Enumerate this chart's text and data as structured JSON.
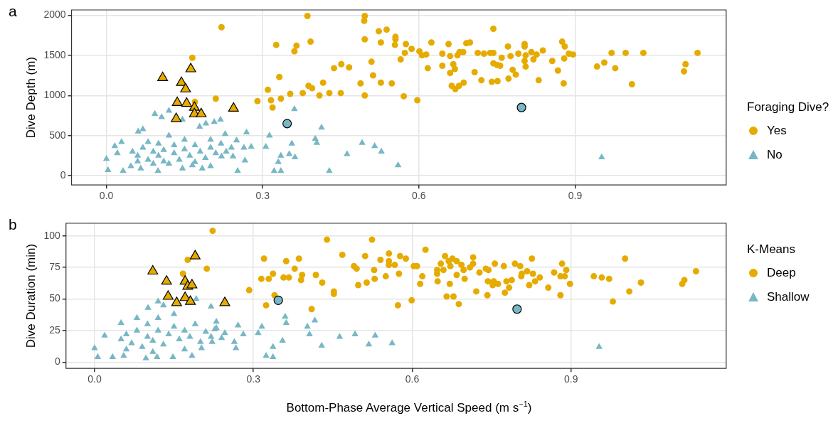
{
  "chart_data": [
    {
      "type": "scatter",
      "title": "a",
      "ylabel": "Dive Depth (m)",
      "legend_title": "Foraging Dive?",
      "legend": "right",
      "grid": true,
      "xlim": [
        -0.067,
        1.19
      ],
      "xticks": [
        {
          "value": 0,
          "label": "0.0"
        },
        {
          "value": 0.3,
          "label": "0.3"
        },
        {
          "value": 0.6,
          "label": "0.6"
        },
        {
          "value": 0.9,
          "label": "0.9"
        }
      ],
      "ylim": [
        -115,
        2065
      ],
      "yticks": [
        0,
        500,
        1000,
        1500,
        2000
      ],
      "series": [
        {
          "name": "Yes",
          "color": "#e6ab00",
          "marker": "circle",
          "x": [
            0.221,
            0.165,
            0.21,
            0.17,
            0.29,
            0.326,
            0.365,
            0.361,
            0.332,
            0.31,
            0.316,
            0.335,
            0.319,
            0.353,
            0.386,
            0.496,
            0.495,
            0.523,
            0.538,
            0.743,
            0.392,
            0.496,
            0.527,
            0.555,
            0.555,
            0.554,
            0.575,
            0.573,
            0.586,
            0.601,
            0.606,
            0.614,
            0.624,
            0.565,
            0.509,
            0.451,
            0.437,
            0.466,
            0.512,
            0.488,
            0.527,
            0.548,
            0.416,
            0.388,
            0.395,
            0.377,
            0.409,
            0.428,
            0.45,
            0.496,
            0.571,
            0.597,
            0.617,
            0.645,
            0.657,
            0.66,
            0.645,
            0.666,
            0.669,
            0.66,
            0.674,
            0.678,
            0.685,
            0.691,
            0.698,
            0.663,
            0.67,
            0.677,
            0.686,
            0.707,
            0.713,
            0.725,
            0.72,
            0.74,
            0.751,
            0.737,
            0.743,
            0.743,
            0.75,
            0.756,
            0.759,
            0.771,
            0.776,
            0.791,
            0.78,
            0.786,
            0.772,
            0.803,
            0.803,
            0.805,
            0.803,
            0.805,
            0.816,
            0.82,
            0.826,
            0.83,
            0.838,
            0.856,
            0.867,
            0.875,
            0.88,
            0.879,
            0.888,
            0.896,
            0.878,
            0.942,
            0.956,
            0.97,
            0.977,
            0.997,
            1.009,
            1.031,
            1.109,
            1.112,
            1.135
          ],
          "values": [
            1850,
            1470,
            960,
            920,
            930,
            1630,
            1620,
            1550,
            1230,
            1070,
            940,
            960,
            850,
            1020,
            1990,
            1990,
            1930,
            1800,
            1820,
            1830,
            1670,
            1700,
            1660,
            1730,
            1700,
            1630,
            1640,
            1530,
            1580,
            1550,
            1500,
            1510,
            1660,
            1450,
            1420,
            1390,
            1340,
            1350,
            1250,
            1150,
            1160,
            1150,
            1160,
            1120,
            1090,
            1030,
            1000,
            1030,
            1030,
            1000,
            990,
            940,
            1340,
            1520,
            1640,
            1490,
            1370,
            1390,
            1330,
            1280,
            1500,
            1540,
            1540,
            1650,
            1660,
            1120,
            1080,
            1120,
            1160,
            1290,
            1530,
            1520,
            1190,
            1170,
            1180,
            1530,
            1530,
            1400,
            1380,
            1370,
            1470,
            1610,
            1490,
            1520,
            1320,
            1260,
            1210,
            1640,
            1610,
            1500,
            1430,
            1360,
            1540,
            1450,
            1510,
            1190,
            1560,
            1430,
            1310,
            1670,
            1610,
            1460,
            1520,
            1510,
            1150,
            1360,
            1410,
            1530,
            1340,
            1530,
            1140,
            1530,
            1300,
            1390,
            1530
          ]
        },
        {
          "name": "No",
          "color": "#78b7c5",
          "marker": "triangle",
          "x": [
            0.0,
            0.003,
            0.032,
            0.016,
            0.029,
            0.021,
            0.061,
            0.07,
            0.093,
            0.12,
            0.106,
            0.146,
            0.179,
            0.191,
            0.207,
            0.219,
            0.228,
            0.25,
            0.269,
            0.278,
            0.264,
            0.252,
            0.221,
            0.243,
            0.266,
            0.2,
            0.184,
            0.165,
            0.146,
            0.099,
            0.066,
            0.047,
            0.313,
            0.306,
            0.356,
            0.361,
            0.335,
            0.351,
            0.362,
            0.33,
            0.322,
            0.335,
            0.413,
            0.401,
            0.404,
            0.462,
            0.491,
            0.515,
            0.528,
            0.428,
            0.56,
            0.951,
            0.05,
            0.06,
            0.07,
            0.08,
            0.08,
            0.09,
            0.1,
            0.1,
            0.11,
            0.11,
            0.12,
            0.13,
            0.13,
            0.14,
            0.15,
            0.15,
            0.16,
            0.17,
            0.18,
            0.19,
            0.2,
            0.21,
            0.22,
            0.23,
            0.24,
            0.12,
            0.09,
            0.06,
            0.17,
            0.2
          ],
          "values": [
            210,
            70,
            60,
            370,
            420,
            280,
            550,
            580,
            770,
            810,
            730,
            700,
            610,
            650,
            670,
            700,
            520,
            440,
            540,
            360,
            350,
            60,
            240,
            240,
            190,
            120,
            90,
            130,
            90,
            60,
            90,
            120,
            500,
            360,
            400,
            830,
            250,
            270,
            230,
            170,
            60,
            60,
            600,
            460,
            410,
            270,
            410,
            370,
            300,
            60,
            130,
            230,
            300,
            250,
            350,
            200,
            420,
            300,
            250,
            400,
            180,
            320,
            500,
            280,
            380,
            200,
            330,
            450,
            250,
            380,
            300,
            220,
            350,
            280,
            400,
            300,
            350,
            150,
            150,
            180,
            170,
            450
          ]
        },
        {
          "color": "#e6ab00",
          "marker": "triangle",
          "x": [
            0.108,
            0.162,
            0.144,
            0.152,
            0.136,
            0.154,
            0.169,
            0.169,
            0.182,
            0.134,
            0.244
          ],
          "values": [
            1220,
            1330,
            1160,
            1080,
            910,
            900,
            850,
            770,
            770,
            710,
            840
          ]
        },
        {
          "color": "#78b7c5",
          "marker": "circle",
          "x": [
            0.347,
            0.797
          ],
          "values": [
            650,
            850
          ]
        }
      ]
    },
    {
      "type": "scatter",
      "title": "b",
      "ylabel": "Dive Duration (min)",
      "xlabel": "Bottom-Phase Average Vertical Speed (m s$^{−1}$)",
      "legend_title": "K-Means",
      "legend": "right",
      "grid": true,
      "xlim": [
        -0.054,
        1.193
      ],
      "xticks": [
        {
          "value": 0,
          "label": "0.0"
        },
        {
          "value": 0.3,
          "label": "0.3"
        },
        {
          "value": 0.6,
          "label": "0.6"
        },
        {
          "value": 0.9,
          "label": "0.9"
        }
      ],
      "ylim": [
        -5,
        110
      ],
      "yticks": [
        0,
        25,
        50,
        75,
        100
      ],
      "series": [
        {
          "name": "Deep",
          "color": "#e6ab00",
          "marker": "circle",
          "x": [
            0.223,
            0.176,
            0.212,
            0.167,
            0.292,
            0.32,
            0.362,
            0.386,
            0.378,
            0.337,
            0.315,
            0.329,
            0.357,
            0.367,
            0.392,
            0.39,
            0.34,
            0.324,
            0.439,
            0.524,
            0.468,
            0.511,
            0.556,
            0.54,
            0.577,
            0.588,
            0.625,
            0.49,
            0.495,
            0.556,
            0.556,
            0.567,
            0.528,
            0.55,
            0.575,
            0.529,
            0.514,
            0.498,
            0.418,
            0.43,
            0.452,
            0.452,
            0.41,
            0.573,
            0.599,
            0.603,
            0.609,
            0.619,
            0.615,
            0.654,
            0.662,
            0.669,
            0.647,
            0.647,
            0.659,
            0.672,
            0.676,
            0.684,
            0.693,
            0.709,
            0.715,
            0.715,
            0.727,
            0.684,
            0.697,
            0.699,
            0.648,
            0.671,
            0.665,
            0.678,
            0.688,
            0.721,
            0.742,
            0.739,
            0.744,
            0.756,
            0.773,
            0.794,
            0.804,
            0.817,
            0.826,
            0.828,
            0.807,
            0.806,
            0.841,
            0.832,
            0.821,
            0.743,
            0.754,
            0.752,
            0.762,
            0.778,
            0.788,
            0.783,
            0.775,
            0.857,
            0.868,
            0.88,
            0.883,
            0.891,
            0.888,
            0.898,
            0.88,
            0.943,
            0.958,
            0.972,
            1.002,
            0.979,
            1.01,
            1.032,
            1.11,
            1.114,
            1.136
          ],
          "values": [
            104,
            81,
            74,
            70,
            57,
            82,
            80,
            82,
            74,
            70,
            66,
            66,
            67,
            67,
            69,
            65,
            53,
            45,
            97,
            97,
            85,
            84,
            86,
            81,
            84,
            82,
            89,
            76,
            74,
            80,
            77,
            77,
            73,
            68,
            70,
            66,
            63,
            61,
            69,
            63,
            56,
            54,
            42,
            45,
            49,
            76,
            76,
            68,
            62,
            78,
            84,
            80,
            73,
            70,
            73,
            76,
            82,
            80,
            77,
            75,
            83,
            78,
            71,
            69,
            73,
            66,
            64,
            62,
            52,
            52,
            46,
            56,
            53,
            74,
            73,
            78,
            76,
            78,
            76,
            72,
            82,
            70,
            70,
            68,
            67,
            64,
            61,
            64,
            64,
            61,
            62,
            64,
            65,
            59,
            55,
            59,
            71,
            68,
            78,
            73,
            68,
            62,
            53,
            68,
            67,
            66,
            82,
            48,
            56,
            63,
            62,
            65,
            72
          ]
        },
        {
          "name": "Shallow",
          "color": "#78b7c5",
          "marker": "triangle",
          "x": [
            0.0,
            0.006,
            0.034,
            0.019,
            0.05,
            0.101,
            0.12,
            0.192,
            0.22,
            0.23,
            0.271,
            0.281,
            0.264,
            0.267,
            0.222,
            0.202,
            0.184,
            0.148,
            0.118,
            0.097,
            0.055,
            0.316,
            0.309,
            0.36,
            0.362,
            0.355,
            0.337,
            0.324,
            0.337,
            0.246,
            0.227,
            0.416,
            0.402,
            0.406,
            0.429,
            0.463,
            0.492,
            0.53,
            0.518,
            0.562,
            0.953,
            0.05,
            0.06,
            0.07,
            0.08,
            0.09,
            0.1,
            0.1,
            0.11,
            0.12,
            0.12,
            0.13,
            0.14,
            0.15,
            0.16,
            0.17,
            0.18,
            0.19,
            0.2,
            0.21,
            0.22,
            0.23,
            0.24,
            0.08,
            0.15,
            0.11,
            0.17,
            0.06,
            0.13
          ],
          "values": [
            11,
            4,
            4,
            21,
            31,
            43,
            48,
            50,
            44,
            32,
            29,
            22,
            16,
            11,
            16,
            11,
            5,
            4,
            4,
            3,
            5,
            28,
            23,
            36,
            31,
            17,
            12,
            5,
            4,
            23,
            26,
            33,
            28,
            22,
            13,
            20,
            22,
            21,
            14,
            15,
            12,
            18,
            22,
            15,
            25,
            12,
            20,
            30,
            17,
            25,
            35,
            14,
            22,
            28,
            18,
            25,
            20,
            30,
            16,
            24,
            20,
            27,
            19,
            35,
            38,
            8,
            10,
            10,
            45
          ]
        },
        {
          "color": "#e6ab00",
          "marker": "triangle",
          "x": [
            0.11,
            0.19,
            0.136,
            0.171,
            0.176,
            0.184,
            0.139,
            0.171,
            0.155,
            0.181,
            0.246
          ],
          "values": [
            72,
            84,
            64,
            64,
            60,
            61,
            52,
            51,
            47,
            48,
            47
          ]
        },
        {
          "color": "#78b7c5",
          "marker": "circle",
          "x": [
            0.347,
            0.798
          ],
          "values": [
            49,
            42
          ]
        }
      ]
    }
  ]
}
